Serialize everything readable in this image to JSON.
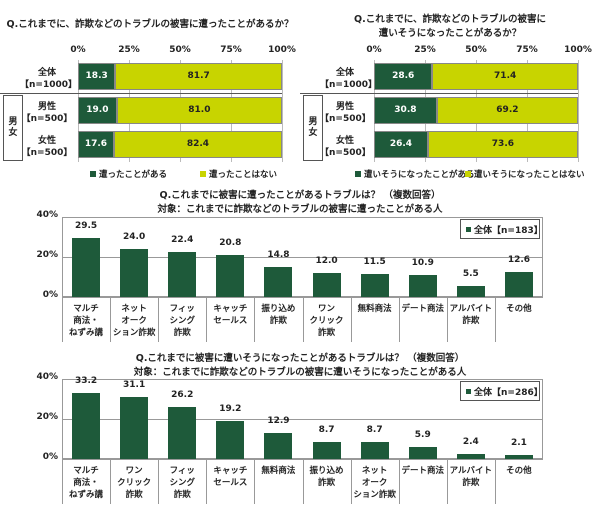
{
  "colors": {
    "dark": "#1e5a3a",
    "light": "#c8d400"
  },
  "chart_data": [
    {
      "type": "bar",
      "orientation": "horizontal-stacked",
      "title": "Q.これまでに、詐欺などのトラブルの被害に遭ったことがあるか？",
      "ticks": [
        "0%",
        "25%",
        "50%",
        "75%",
        "100%"
      ],
      "xlim": [
        0,
        100
      ],
      "group_label": "男女",
      "categories": [
        {
          "name": "全体",
          "n": "【n=1000】"
        },
        {
          "name": "男性",
          "n": "【n=500】"
        },
        {
          "name": "女性",
          "n": "【n=500】"
        }
      ],
      "series": [
        {
          "name": "遭ったことがある",
          "values": [
            18.3,
            19.0,
            17.6
          ]
        },
        {
          "name": "遭ったことはない",
          "values": [
            81.7,
            81.0,
            82.4
          ]
        }
      ]
    },
    {
      "type": "bar",
      "orientation": "horizontal-stacked",
      "title": "Q.これまでに、詐欺などのトラブルの被害に",
      "title2": "遭いそうになったことがあるか？",
      "ticks": [
        "0%",
        "25%",
        "50%",
        "75%",
        "100%"
      ],
      "xlim": [
        0,
        100
      ],
      "group_label": "男女",
      "categories": [
        {
          "name": "全体",
          "n": "【n=1000】"
        },
        {
          "name": "男性",
          "n": "【n=500】"
        },
        {
          "name": "女性",
          "n": "【n=500】"
        }
      ],
      "series": [
        {
          "name": "遭いそうになったことがある",
          "values": [
            28.6,
            30.8,
            26.4
          ]
        },
        {
          "name": "遭いそうになったことはない",
          "values": [
            71.4,
            69.2,
            73.6
          ]
        }
      ]
    },
    {
      "type": "bar",
      "title": "Q.これまでに被害に遭ったことがあるトラブルは？ （複数回答）",
      "subtitle": "対象：これまでに詐欺などのトラブルの被害に遭ったことがある人",
      "yticks": [
        "0%",
        "20%",
        "40%"
      ],
      "ylim": [
        0,
        40
      ],
      "legend": "全体【n=183】",
      "legend_position": "top-right",
      "categories": [
        "マルチ\n商法・\nねずみ講",
        "ネット\nオーク\nション詐欺",
        "フィッ\nシング\n詐欺",
        "キャッチ\nセールス",
        "振り込め\n詐欺",
        "ワン\nクリック\n詐欺",
        "無料商法",
        "デート商法",
        "アルバイト\n詐欺",
        "その他"
      ],
      "values": [
        29.5,
        24.0,
        22.4,
        20.8,
        14.8,
        12.0,
        11.5,
        10.9,
        5.5,
        12.6
      ],
      "labels": [
        "29.5",
        "24.0",
        "22.4",
        "20.8",
        "14.8",
        "12.0",
        "11.5",
        "10.9",
        "5.5",
        "12.6"
      ]
    },
    {
      "type": "bar",
      "title": "Q.これまでに被害に遭いそうになったことがあるトラブルは？ （複数回答）",
      "subtitle": "対象：これまでに詐欺などのトラブルの被害に遭いそうになったことがある人",
      "yticks": [
        "0%",
        "20%",
        "40%"
      ],
      "ylim": [
        0,
        40
      ],
      "legend": "全体【n=286】",
      "legend_position": "top-right",
      "categories": [
        "マルチ\n商法・\nねずみ講",
        "ワン\nクリック\n詐欺",
        "フィッ\nシング\n詐欺",
        "キャッチ\nセールス",
        "無料商法",
        "振り込め\n詐欺",
        "ネット\nオーク\nション詐欺",
        "デート商法",
        "アルバイト\n詐欺",
        "その他"
      ],
      "values": [
        33.2,
        31.1,
        26.2,
        19.2,
        12.9,
        8.7,
        8.7,
        5.9,
        2.4,
        2.1
      ],
      "labels": [
        "33.2",
        "31.1",
        "26.2",
        "19.2",
        "12.9",
        "8.7",
        "8.7",
        "5.9",
        "2.4",
        "2.1"
      ]
    }
  ]
}
